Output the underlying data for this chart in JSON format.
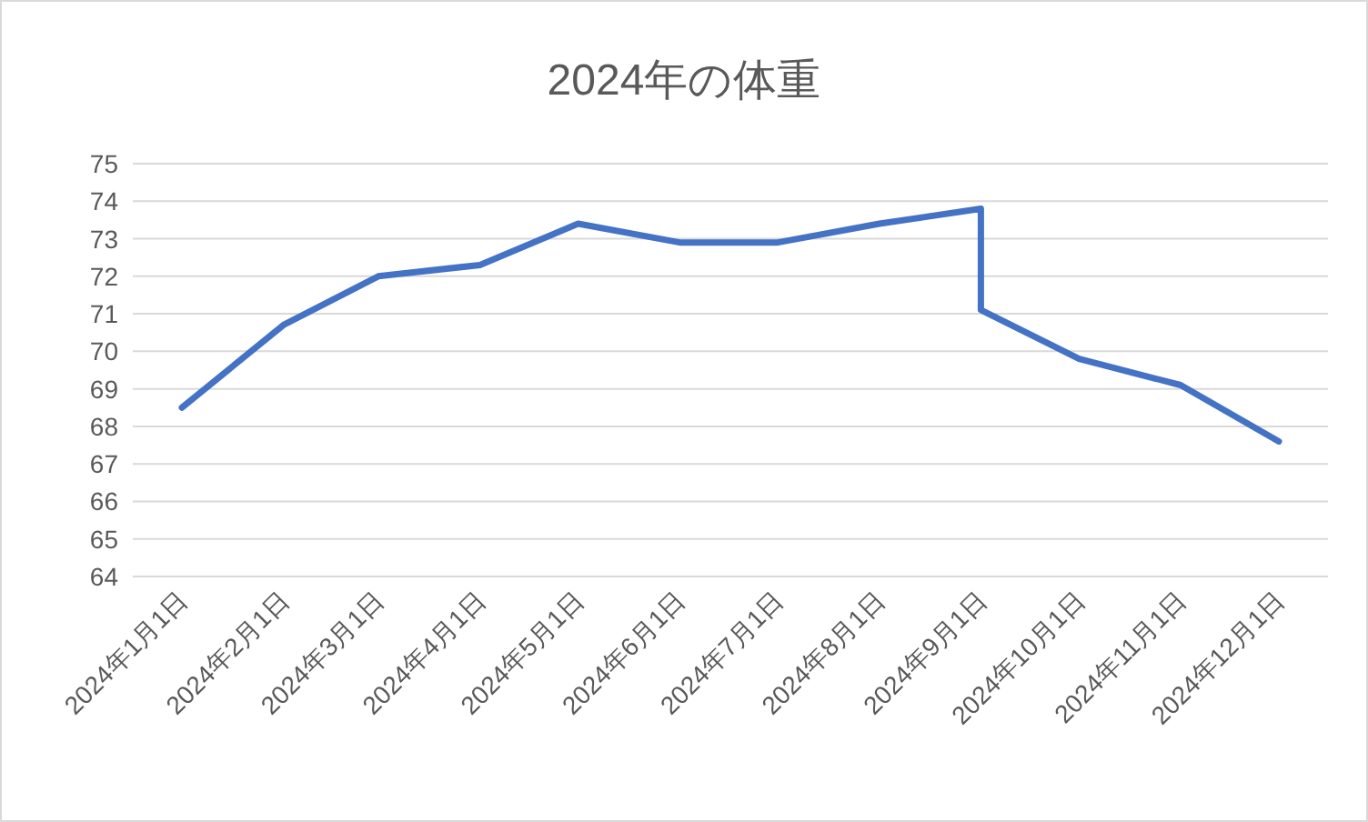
{
  "chart_data": {
    "type": "line",
    "title": "2024年の体重",
    "x": [
      "2024-01-01",
      "2024-02-01",
      "2024-03-01",
      "2024-04-01",
      "2024-05-01",
      "2024-06-01",
      "2024-07-01",
      "2024-08-01",
      "2024-09-01",
      "2024-09-01",
      "2024-10-01",
      "2024-11-01",
      "2024-12-01"
    ],
    "series": [
      {
        "color": "#4472c4",
        "values": [
          68.5,
          70.7,
          72.0,
          72.3,
          73.4,
          72.9,
          72.9,
          73.4,
          73.8,
          71.1,
          69.8,
          69.1,
          67.6
        ]
      }
    ],
    "xlim": [
      "2023-12-17",
      "2024-12-16"
    ],
    "xticks": [
      {
        "value": "2024-01-01",
        "label": "2024年1月1日"
      },
      {
        "value": "2024-02-01",
        "label": "2024年2月1日"
      },
      {
        "value": "2024-03-01",
        "label": "2024年3月1日"
      },
      {
        "value": "2024-04-01",
        "label": "2024年4月1日"
      },
      {
        "value": "2024-05-01",
        "label": "2024年5月1日"
      },
      {
        "value": "2024-06-01",
        "label": "2024年6月1日"
      },
      {
        "value": "2024-07-01",
        "label": "2024年7月1日"
      },
      {
        "value": "2024-08-01",
        "label": "2024年8月1日"
      },
      {
        "value": "2024-09-01",
        "label": "2024年9月1日"
      },
      {
        "value": "2024-10-01",
        "label": "2024年10月1日"
      },
      {
        "value": "2024-11-01",
        "label": "2024年11月1日"
      },
      {
        "value": "2024-12-01",
        "label": "2024年12月1日"
      }
    ],
    "ylim": [
      64,
      75
    ],
    "yticks": [
      64,
      65,
      66,
      67,
      68,
      69,
      70,
      71,
      72,
      73,
      74,
      75
    ],
    "grid": "y",
    "marker": "none",
    "line_style": "solid"
  }
}
